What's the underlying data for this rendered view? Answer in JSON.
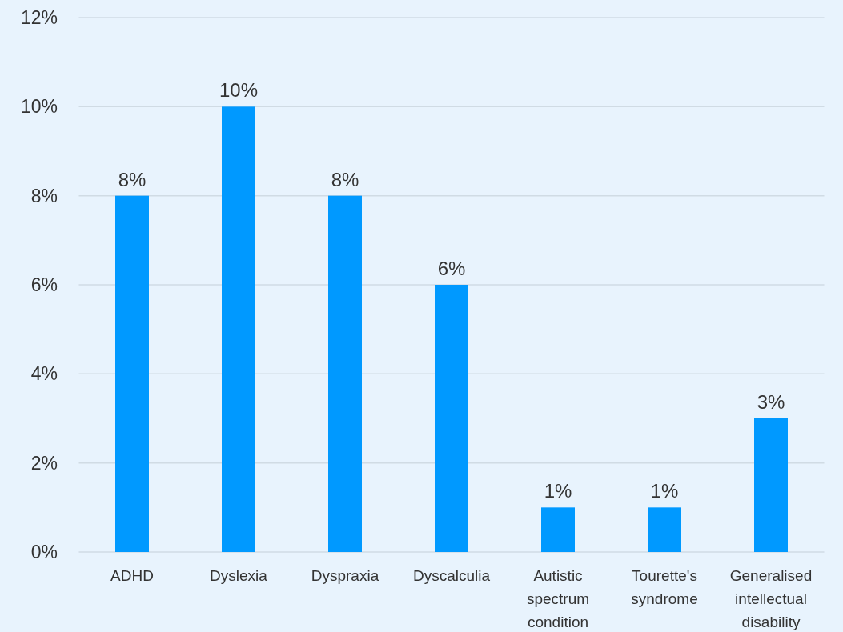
{
  "chart_data": {
    "type": "bar",
    "categories": [
      "ADHD",
      "Dyslexia",
      "Dyspraxia",
      "Dyscalculia",
      "Autistic spectrum condition",
      "Tourette's syndrome",
      "Generalised intellectual disability"
    ],
    "values": [
      8,
      10,
      8,
      6,
      1,
      1,
      3
    ],
    "value_labels": [
      "8%",
      "10%",
      "8%",
      "6%",
      "1%",
      "1%",
      "3%"
    ],
    "color": "#0099ff",
    "ylim": [
      0,
      12
    ],
    "yticks": [
      {
        "value": 0,
        "label": "0%"
      },
      {
        "value": 2,
        "label": "2%"
      },
      {
        "value": 4,
        "label": "4%"
      },
      {
        "value": 6,
        "label": "6%"
      },
      {
        "value": 8,
        "label": "8%"
      },
      {
        "value": 10,
        "label": "10%"
      },
      {
        "value": 12,
        "label": "12%"
      }
    ],
    "grid": "y"
  }
}
